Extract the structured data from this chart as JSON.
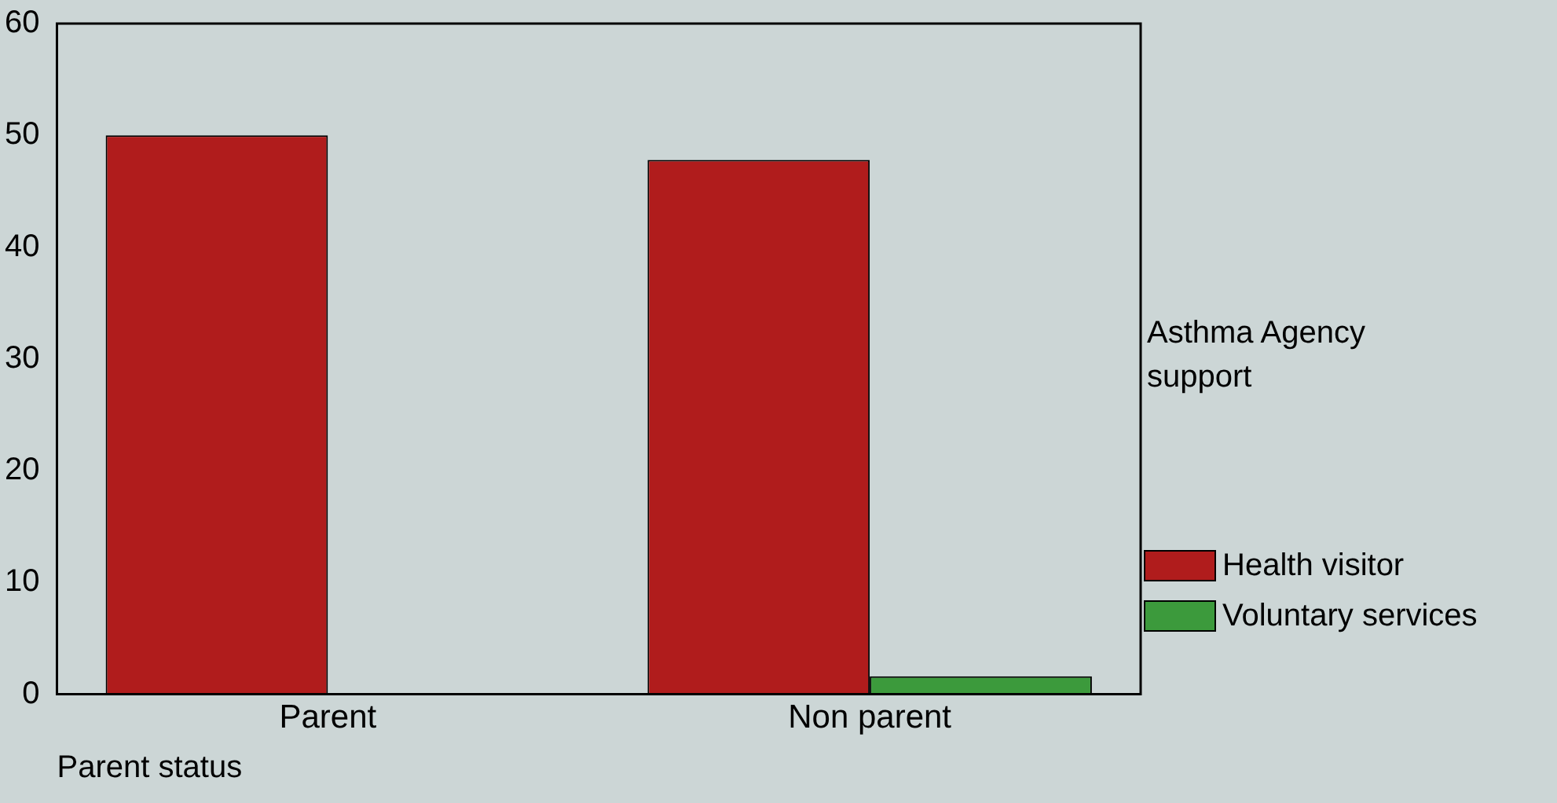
{
  "chart_data": {
    "type": "bar",
    "categories": [
      "Parent",
      "Non parent"
    ],
    "xlabel": "Parent status",
    "legend_title": "Asthma Agency support",
    "legend": "right",
    "series": [
      {
        "name": "Health visitor",
        "color": "#b01c1c",
        "values": [
          50,
          47.8
        ]
      },
      {
        "name": "Voluntary services",
        "color": "#3c9a3c",
        "values": [
          0,
          1.6
        ]
      }
    ],
    "ylim": [
      0,
      60
    ],
    "yticks": [
      0,
      10,
      20,
      30,
      40,
      50,
      60
    ],
    "grid": false
  }
}
